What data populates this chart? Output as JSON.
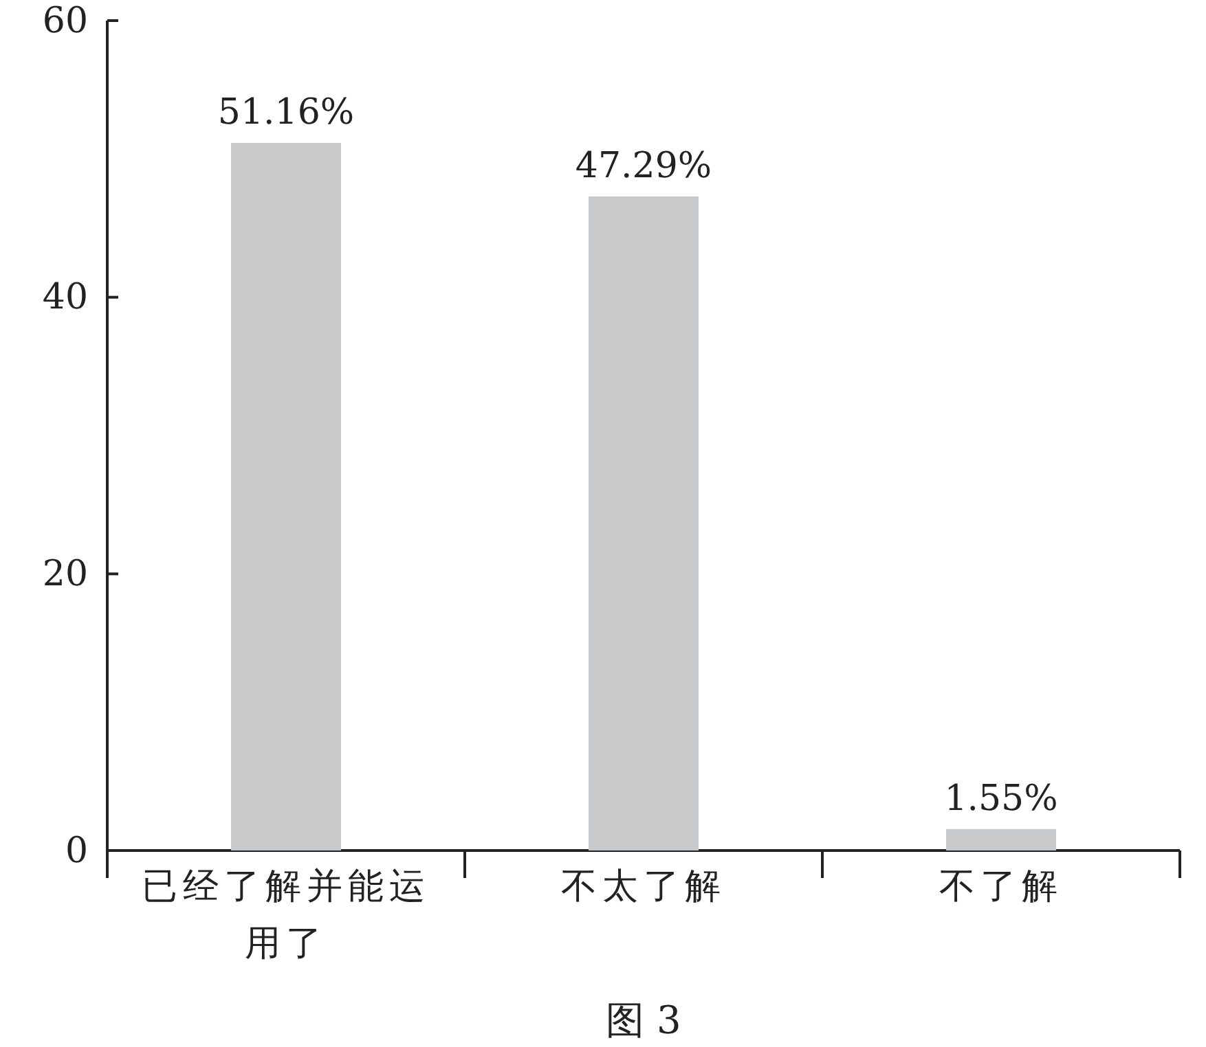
{
  "chart_data": {
    "type": "bar",
    "title": "图 3",
    "categories": [
      "已经了解并能运用了",
      "不太了解",
      "不了解"
    ],
    "values": [
      51.16,
      47.29,
      1.55
    ],
    "value_labels": [
      "51.16%",
      "47.29%",
      "1.55%"
    ],
    "color": "#c8c9cb",
    "ylim": [
      0,
      60
    ],
    "yticks": [
      0,
      20,
      40,
      60
    ],
    "grid": false
  }
}
